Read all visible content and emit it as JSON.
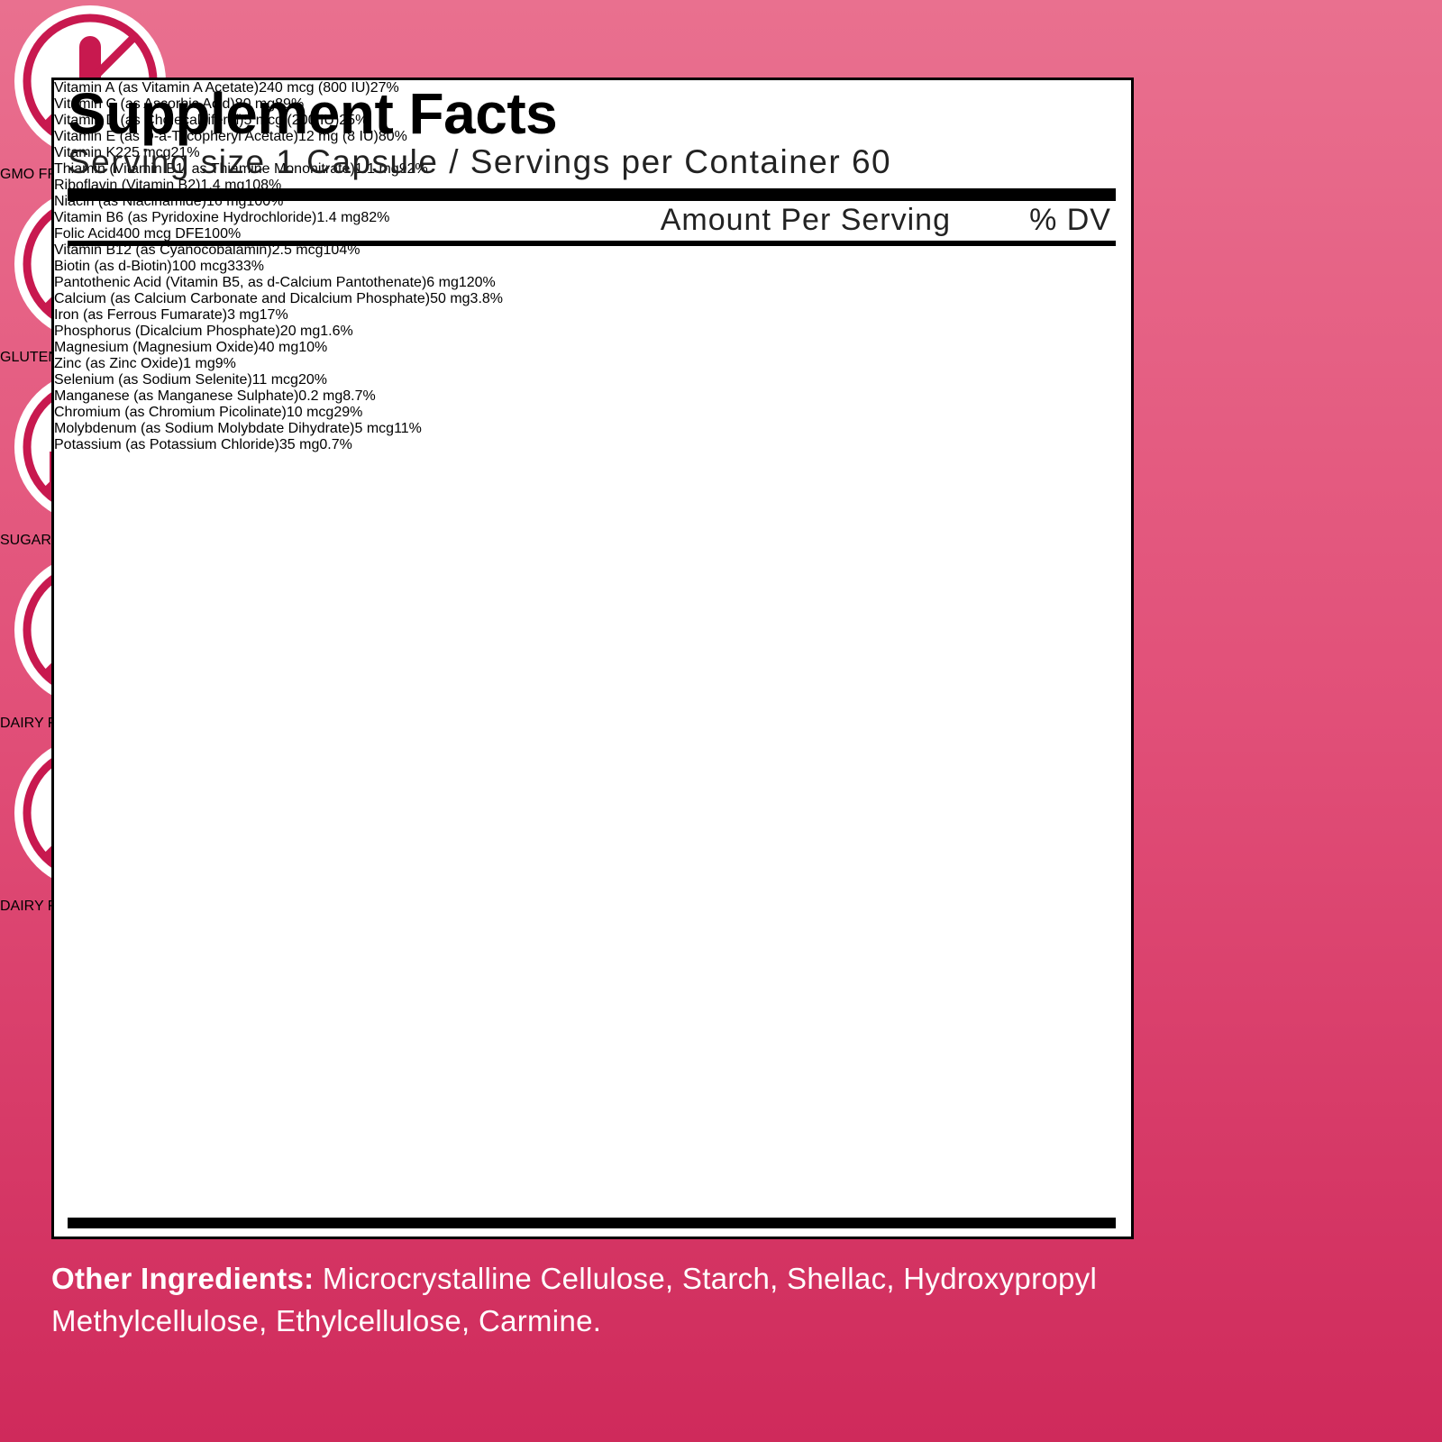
{
  "panel": {
    "title": "Supplement Facts",
    "serving": "Serving size 1 Capsule / Servings per Container 60",
    "header": {
      "amount": "Amount Per Serving",
      "dv": "% DV"
    },
    "rows": [
      [
        "Vitamin A (as Vitamin A Acetate)",
        "240 mcg (800 IU)",
        "27%"
      ],
      [
        "Vitamin C (as Ascorbic Acid)",
        "80 mg",
        "89%"
      ],
      [
        "Vitamin D (as Cholecalciferol)",
        "5 mcg (200 IU)",
        "25%"
      ],
      [
        "Vitamin E (as D-a-Tocopheryl Acetate)",
        "12 mg (8 IU)",
        "80%"
      ],
      [
        "Vitamin K2",
        "25 mcg",
        "21%"
      ],
      [
        "Thiamin (Vitamin B1, as Thiamine Mononitrate)",
        "1.1 mg",
        "92%"
      ],
      [
        "Riboflavin (Vitamin B2)",
        "1.4 mg",
        "108%"
      ],
      [
        "Niacin (as Niacinamide)",
        "16 mg",
        "100%"
      ],
      [
        "Vitamin B6 (as Pyridoxine Hydrochloride)",
        "1.4 mg",
        "82%"
      ],
      [
        "Folic Acid",
        "400 mcg DFE",
        "100%"
      ],
      [
        "Vitamin B12 (as Cyanocobalamin)",
        "2.5 mcg",
        "104%"
      ],
      [
        "Biotin (as d-Biotin)",
        "100 mcg",
        "333%"
      ],
      [
        "Pantothenic Acid (Vitamin B5, as d-Calcium Pantothenate)",
        "6 mg",
        "120%"
      ],
      [
        "Calcium (as Calcium Carbonate and Dicalcium Phosphate)",
        "50 mg",
        "3.8%"
      ],
      [
        "Iron (as Ferrous Fumarate)",
        "3 mg",
        "17%"
      ],
      [
        "Phosphorus (Dicalcium Phosphate)",
        "20 mg",
        "1.6%"
      ],
      [
        "Magnesium (Magnesium Oxide)",
        "40 mg",
        "10%"
      ],
      [
        "Zinc (as Zinc Oxide)",
        "1 mg",
        "9%"
      ],
      [
        "Selenium (as Sodium Selenite)",
        "11 mcg",
        "20%"
      ],
      [
        "Manganese (as Manganese Sulphate)",
        "0.2 mg",
        "8.7%"
      ],
      [
        "Chromium (as Chromium Picolinate)",
        "10 mcg",
        "29%"
      ],
      [
        "Molybdenum (as Sodium Molybdate Dihydrate)",
        "5 mcg",
        "11%"
      ],
      [
        "Potassium (as Potassium Chloride)",
        "35 mg",
        "0.7%"
      ]
    ]
  },
  "other_ingredients": {
    "label": "Other Ingredients:",
    "text": "Microcrystalline Cellulose, Starch, Shellac, Hydroxypropyl Methylcellulose, Ethylcellulose, Carmine."
  },
  "badges": [
    "GMO FREE",
    "GLUTEN FREE",
    "SUGAR FREE",
    "DAIRY FREE",
    "DAIRY FREE"
  ]
}
